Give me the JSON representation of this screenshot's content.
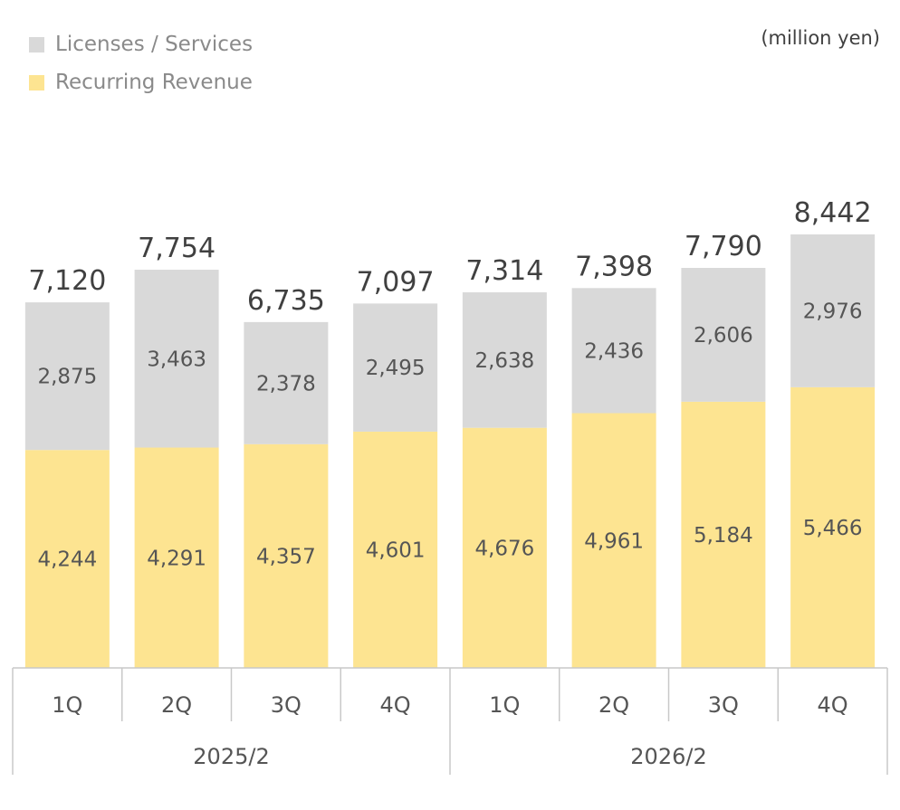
{
  "legend": [
    {
      "label": "Licenses / Services",
      "color": "#d9d9d9"
    },
    {
      "label": "Recurring Revenue",
      "color": "#fde491"
    }
  ],
  "unit": "(million yen)",
  "chart_data": {
    "type": "bar",
    "stacked": true,
    "categories": [
      "1Q",
      "2Q",
      "3Q",
      "4Q",
      "1Q",
      "2Q",
      "3Q",
      "4Q"
    ],
    "groups": [
      {
        "label": "2025/2",
        "quarters": 4
      },
      {
        "label": "2026/2",
        "quarters": 4
      }
    ],
    "series": [
      {
        "name": "Recurring Revenue",
        "color": "#fde491",
        "values": [
          4244,
          4291,
          4357,
          4601,
          4676,
          4961,
          5184,
          5466
        ]
      },
      {
        "name": "Licenses / Services",
        "color": "#d9d9d9",
        "values": [
          2875,
          3463,
          2378,
          2495,
          2638,
          2436,
          2606,
          2976
        ]
      }
    ],
    "totals": [
      "7,120",
      "7,754",
      "6,735",
      "7,097",
      "7,314",
      "7,398",
      "7,790",
      "8,442"
    ],
    "ylim": [
      0,
      8442
    ],
    "grid": false,
    "legend_position": "top-left"
  }
}
